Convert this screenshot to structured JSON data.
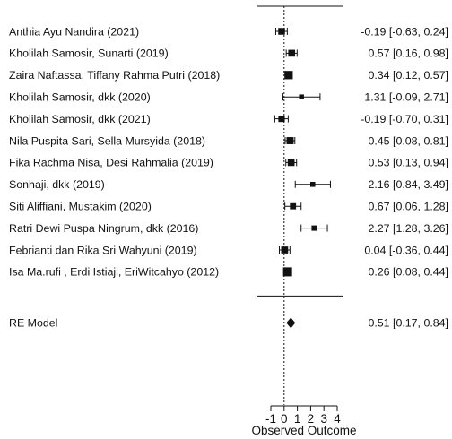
{
  "chart_data": {
    "type": "forest",
    "xlabel": "Observed Outcome",
    "xlim": [
      -1,
      4
    ],
    "x_ticks": [
      -1,
      0,
      1,
      2,
      3,
      4
    ],
    "reference_line": 0,
    "studies": [
      {
        "label": "Anthia Ayu Nandira (2021)",
        "estimate": -0.19,
        "ci_low": -0.63,
        "ci_high": 0.24,
        "text": "-0.19 [-0.63, 0.24]"
      },
      {
        "label": "Kholilah Samosir, Sunarti (2019)",
        "estimate": 0.57,
        "ci_low": 0.16,
        "ci_high": 0.98,
        "text": "0.57 [0.16, 0.98]"
      },
      {
        "label": "Zaira Naftassa, Tiffany Rahma Putri (2018)",
        "estimate": 0.34,
        "ci_low": 0.12,
        "ci_high": 0.57,
        "text": "0.34 [0.12, 0.57]"
      },
      {
        "label": "Kholilah Samosir, dkk (2020)",
        "estimate": 1.31,
        "ci_low": -0.09,
        "ci_high": 2.71,
        "text": "1.31 [-0.09, 2.71]"
      },
      {
        "label": "Kholilah Samosir, dkk (2021)",
        "estimate": -0.19,
        "ci_low": -0.7,
        "ci_high": 0.31,
        "text": "-0.19 [-0.70, 0.31]"
      },
      {
        "label": "Nila Puspita Sari, Sella Mursyida (2018)",
        "estimate": 0.45,
        "ci_low": 0.08,
        "ci_high": 0.81,
        "text": "0.45 [0.08, 0.81]"
      },
      {
        "label": "Fika Rachma Nisa, Desi Rahmalia (2019)",
        "estimate": 0.53,
        "ci_low": 0.13,
        "ci_high": 0.94,
        "text": "0.53 [0.13, 0.94]"
      },
      {
        "label": "Sonhaji, dkk  (2019)",
        "estimate": 2.16,
        "ci_low": 0.84,
        "ci_high": 3.49,
        "text": "2.16 [0.84, 3.49]"
      },
      {
        "label": "Siti Aliffiani, Mustakim (2020)",
        "estimate": 0.67,
        "ci_low": 0.06,
        "ci_high": 1.28,
        "text": "0.67 [0.06, 1.28]"
      },
      {
        "label": "Ratri Dewi Puspa Ningrum, dkk (2016)",
        "estimate": 2.27,
        "ci_low": 1.28,
        "ci_high": 3.26,
        "text": "2.27 [1.28, 3.26]"
      },
      {
        "label": "Febrianti dan Rika Sri Wahyuni (2019)",
        "estimate": 0.04,
        "ci_low": -0.36,
        "ci_high": 0.44,
        "text": "0.04 [-0.36, 0.44]"
      },
      {
        "label": "Isa Ma.rufi , Erdi Istiaji, EriWitcahyo (2012)",
        "estimate": 0.26,
        "ci_low": 0.08,
        "ci_high": 0.44,
        "text": "0.26 [0.08, 0.44]"
      }
    ],
    "summary": {
      "label": "RE Model",
      "estimate": 0.51,
      "ci_low": 0.17,
      "ci_high": 0.84,
      "text": "0.51 [0.17, 0.84]"
    }
  }
}
